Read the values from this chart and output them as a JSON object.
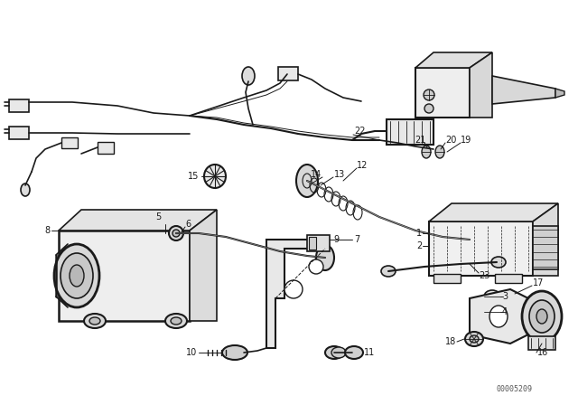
{
  "bg_color": "#ffffff",
  "line_color": "#1a1a1a",
  "label_color": "#111111",
  "watermark": "00005209",
  "fig_width": 6.4,
  "fig_height": 4.48,
  "dpi": 100
}
